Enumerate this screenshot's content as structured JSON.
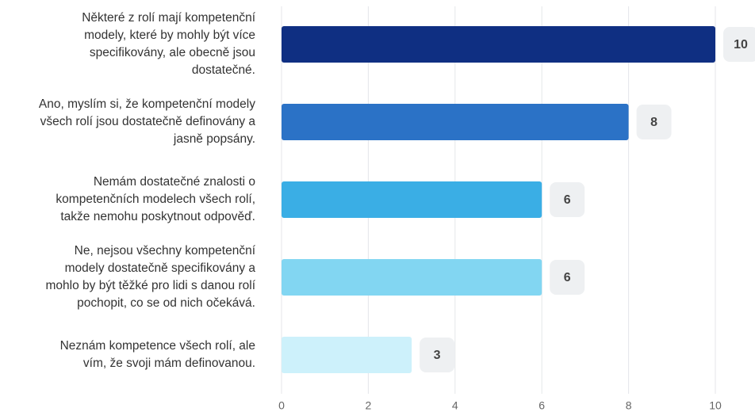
{
  "chart_data": {
    "type": "barh",
    "categories": [
      [
        "Některé z rolí mají kompetenční",
        "modely, které by mohly být více",
        "specifikovány, ale obecně jsou",
        "dostatečné."
      ],
      [
        "Ano, myslím si, že kompetenční modely",
        "všech rolí jsou dostatečně definovány a",
        "jasně popsány."
      ],
      [
        "Nemám dostatečné znalosti o",
        "kompetenčních modelech všech rolí,",
        "takže nemohu poskytnout odpověď."
      ],
      [
        "Ne, nejsou všechny kompetenční",
        "modely dostatečně specifikovány a",
        "mohlo by být těžké pro lidi s danou rolí",
        "pochopit, co se od nich očekává."
      ],
      [
        "Neznám kompetence všech rolí, ale",
        "vím, že svoji mám definovanou."
      ]
    ],
    "values": [
      10,
      8,
      6,
      6,
      3
    ],
    "colors": [
      "#0f2f82",
      "#2b72c6",
      "#3aaee5",
      "#82d6f2",
      "#cdf1fb"
    ],
    "xlim": [
      0,
      10
    ],
    "xticks": [
      0,
      2,
      4,
      6,
      8,
      10
    ],
    "grid": true
  }
}
